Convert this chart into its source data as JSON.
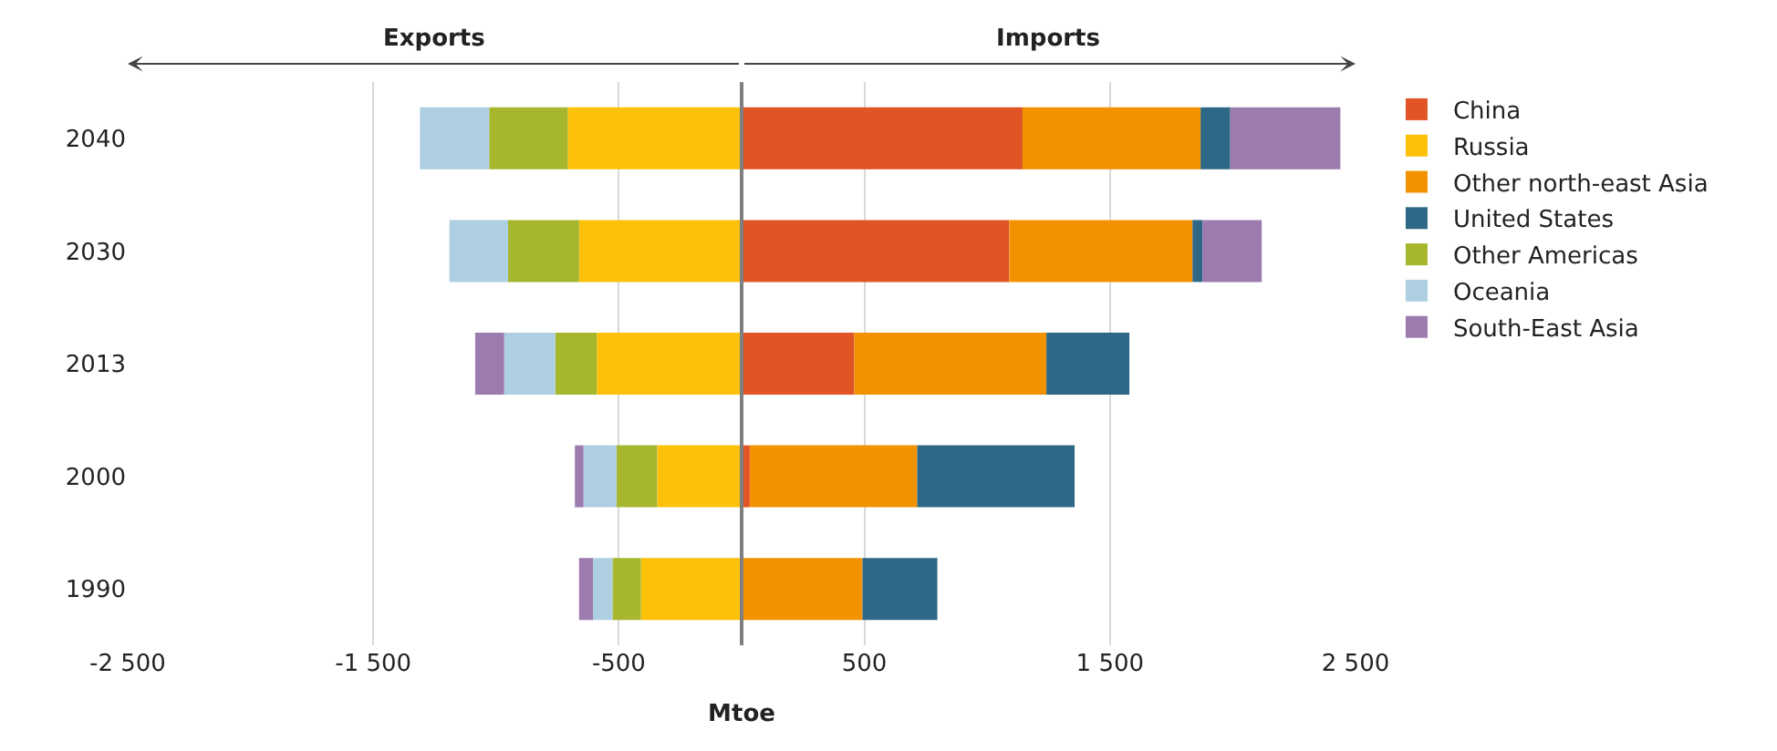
{
  "chart_data": {
    "type": "bar",
    "orientation": "horizontal",
    "stacked": true,
    "categories": [
      "2040",
      "2030",
      "2013",
      "2000",
      "1990"
    ],
    "xlabel": "Mtoe",
    "annotations": [
      "Exports",
      "Imports"
    ],
    "series": [
      {
        "name": "China",
        "color": "#e05426",
        "values": [
          1144,
          1090,
          459,
          33,
          0
        ]
      },
      {
        "name": "Russia",
        "color": "#fdc10a",
        "values": [
          -708,
          -662,
          -590,
          -344,
          -410
        ]
      },
      {
        "name": "Other north-east Asia",
        "color": "#f39200",
        "values": [
          725,
          746,
          782,
          682,
          492
        ]
      },
      {
        "name": "United States",
        "color": "#2f6886",
        "values": [
          121,
          41,
          338,
          641,
          305
        ]
      },
      {
        "name": "Other Americas",
        "color": "#a6b72e",
        "values": [
          -320,
          -289,
          -169,
          -166,
          -116
        ]
      },
      {
        "name": "Oceania",
        "color": "#aecfe2",
        "values": [
          -282,
          -239,
          -208,
          -134,
          -79
        ]
      },
      {
        "name": "South-East Asia",
        "color": "#9c7bae",
        "values": [
          448,
          241,
          -118,
          -35,
          -57
        ]
      }
    ],
    "xlim": [
      -2500,
      2500
    ],
    "xticks": [
      {
        "value": -2500,
        "label": "-2 500"
      },
      {
        "value": -1500,
        "label": "-1 500"
      },
      -500,
      500,
      {
        "value": 1500,
        "label": "1 500"
      },
      {
        "value": 2500,
        "label": "2 500"
      }
    ],
    "grid": "x",
    "legend": "right"
  }
}
